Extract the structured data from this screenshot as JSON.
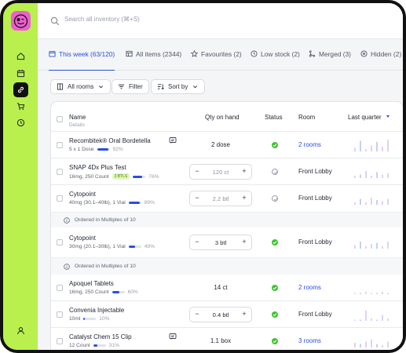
{
  "search": {
    "placeholder": "Search all inventory (⌘+S)"
  },
  "sidebar": {
    "items": [
      {
        "name": "home-icon",
        "active": false
      },
      {
        "name": "calendar-icon",
        "active": false
      },
      {
        "name": "link-icon",
        "active": true
      },
      {
        "name": "cart-icon",
        "active": false
      },
      {
        "name": "history-icon",
        "active": false
      },
      {
        "name": "user-icon",
        "active": false
      }
    ]
  },
  "tabs": [
    {
      "label": "This week (63/120)",
      "icon": "calendar-icon",
      "active": true
    },
    {
      "label": "All items (2344)",
      "icon": "table-icon",
      "active": false
    },
    {
      "label": "Favourites (2)",
      "icon": "star-icon",
      "active": false
    },
    {
      "label": "Low stock (2)",
      "icon": "clock-icon",
      "active": false
    },
    {
      "label": "Merged (3)",
      "icon": "merge-icon",
      "active": false
    },
    {
      "label": "Hidden (2)",
      "icon": "hidden-icon",
      "active": false
    }
  ],
  "filters": {
    "rooms": "All rooms",
    "filter": "Filter",
    "sort": "Sort by"
  },
  "table": {
    "headers": {
      "name": "Name",
      "details": "Details",
      "qty": "Qty on hand",
      "status": "Status",
      "room": "Room",
      "period": "Last quarter"
    },
    "rows": [
      {
        "name": "Recombitek® Oral Bordetella",
        "details": "5 x 1 Dose",
        "percent": 92,
        "percent_label": "92%",
        "qty_type": "text",
        "qty": "2 dose",
        "status": "ok",
        "room": "2 rooms",
        "room_link": true,
        "note": true,
        "note_icon": "note-add-icon",
        "tag": ""
      },
      {
        "name": "SNAP 4Dx Plus Test",
        "details": "16mg, 250 Count",
        "percent": 76,
        "percent_label": "76%",
        "qty_type": "stepper",
        "qty": "120 ct",
        "status": "pending",
        "room": "Front Lobby",
        "room_link": false,
        "tag": "3 BTLS"
      },
      {
        "name": "Cytopoint",
        "details": "40mg (30.1–40lb), 1 Vial",
        "percent": 89,
        "percent_label": "89%",
        "qty_type": "stepper",
        "qty": "2.2 btl",
        "status": "pending",
        "room": "Front Lobby",
        "room_link": false,
        "subnote": "Ordered in Multiples of 10",
        "tag": ""
      },
      {
        "name": "Cytopoint",
        "details": "30mg (20.1–30lb), 1 Vial",
        "percent": 49,
        "percent_label": "49%",
        "qty_type": "stepper",
        "qty": "3 btl",
        "status": "ok",
        "room": "Front Lobby",
        "room_link": false,
        "subnote": "Ordered in Multiples of 10",
        "tag": ""
      },
      {
        "name": "Apoquel Tablets",
        "details": "16mg, 250 Count",
        "percent": 60,
        "percent_label": "60%",
        "qty_type": "text",
        "qty": "14 ct",
        "status": "ok",
        "room": "2 rooms",
        "room_link": true,
        "tag": ""
      },
      {
        "name": "Convenia Injectable",
        "details": "10ml",
        "percent": 10,
        "percent_label": "10%",
        "qty_type": "stepper",
        "qty": "0.4 btl",
        "status": "ok",
        "room": "Front Lobby",
        "room_link": false,
        "tag": ""
      },
      {
        "name": "Catalyst Chem 15 Clip",
        "details": "12 Count",
        "percent": 31,
        "percent_label": "31%",
        "qty_type": "text",
        "qty": "1.1 box",
        "status": "ok",
        "room": "3 rooms",
        "room_link": true,
        "note": true,
        "note_icon": "comment-icon",
        "tag": ""
      }
    ]
  },
  "colors": {
    "sidebar": "#b9f04d",
    "accent": "#2a4ee0",
    "ok": "#3ec42e",
    "spark": "#c7a3e8"
  }
}
